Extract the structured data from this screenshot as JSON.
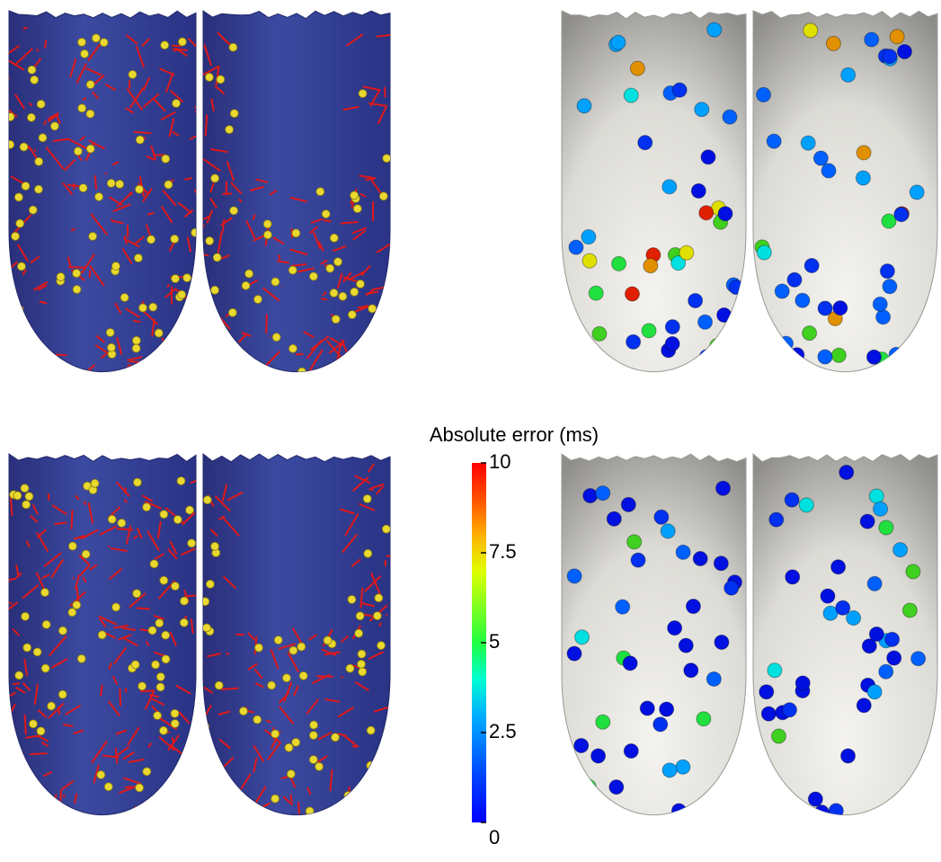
{
  "colorbar": {
    "title": "Absolute error (ms)",
    "range": [
      0,
      10
    ],
    "ticks": [
      0,
      2.5,
      5,
      7.5,
      10
    ]
  }
}
